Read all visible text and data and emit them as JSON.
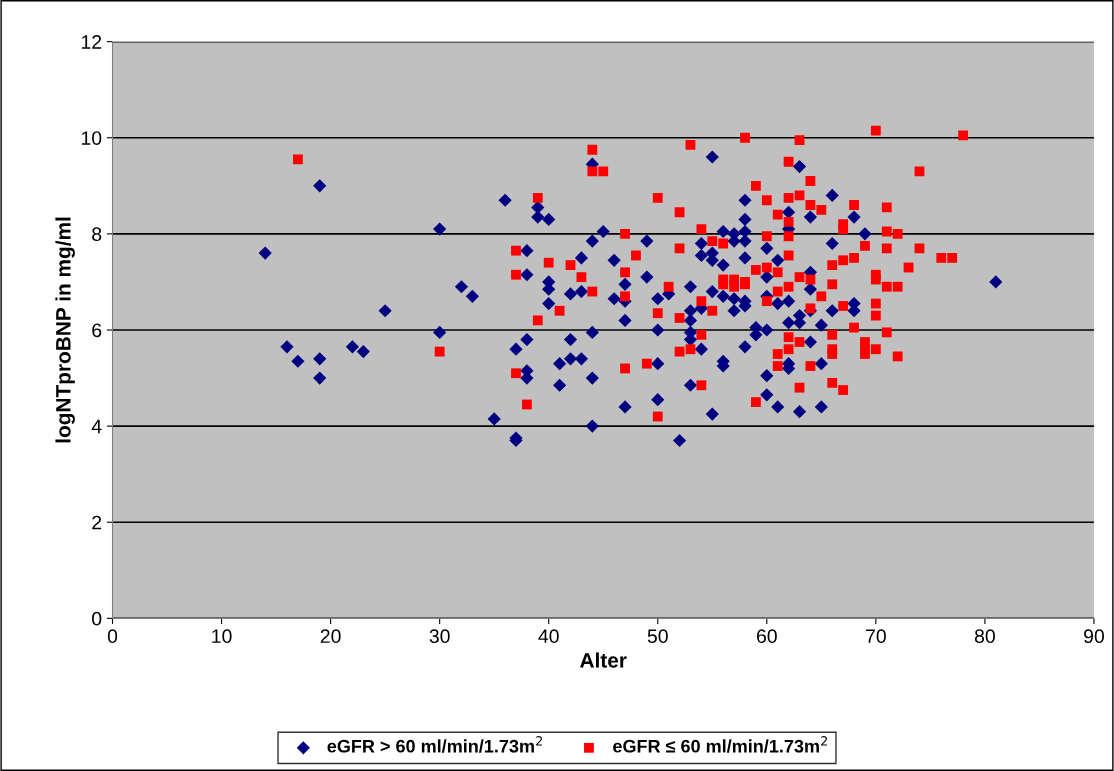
{
  "chart_data": {
    "type": "scatter",
    "xlabel": "Alter",
    "ylabel": "logNTproBNP in mg/ml",
    "xlim": [
      0,
      90
    ],
    "xticks": [
      0,
      10,
      20,
      30,
      40,
      50,
      60,
      70,
      80,
      90
    ],
    "ylim": [
      0,
      12
    ],
    "yticks": [
      0,
      2,
      4,
      6,
      8,
      10,
      12
    ],
    "grid": "y",
    "legend": "bottom",
    "series": [
      {
        "name": "eGFR > 60 ml/min/1.73m$^{2}$",
        "color": "#000080",
        "marker": "diamond",
        "x": [
          14,
          16,
          17,
          19,
          19,
          19,
          22,
          23,
          25,
          30,
          30,
          32,
          33,
          35,
          36,
          37,
          37,
          37,
          38,
          38,
          38,
          38,
          38,
          39,
          39,
          40,
          40,
          40,
          40,
          41,
          41,
          42,
          42,
          42,
          43,
          43,
          43,
          44,
          44,
          44,
          44,
          44,
          45,
          46,
          46,
          47,
          47,
          47,
          47,
          49,
          49,
          50,
          50,
          50,
          50,
          51,
          52,
          53,
          53,
          53,
          53,
          53,
          53,
          54,
          54,
          54,
          54,
          55,
          55,
          55,
          55,
          55,
          56,
          56,
          56,
          56,
          56,
          57,
          57,
          57,
          57,
          58,
          58,
          58,
          58,
          58,
          58,
          58,
          58,
          59,
          59,
          60,
          60,
          60,
          60,
          60,
          60,
          61,
          61,
          61,
          62,
          62,
          62,
          62,
          62,
          62,
          63,
          63,
          63,
          63,
          64,
          64,
          64,
          64,
          64,
          65,
          65,
          65,
          66,
          66,
          66,
          68,
          68,
          68,
          69,
          81
        ],
        "values": [
          7.6,
          5.65,
          5.35,
          9.0,
          5.4,
          5.0,
          5.65,
          5.55,
          6.4,
          8.1,
          5.95,
          6.9,
          6.7,
          4.15,
          8.7,
          3.75,
          3.7,
          5.6,
          7.65,
          7.15,
          5.8,
          5.15,
          5.0,
          8.55,
          8.35,
          8.3,
          7.0,
          6.85,
          6.55,
          4.85,
          5.3,
          6.75,
          5.8,
          5.4,
          7.5,
          6.8,
          5.4,
          9.45,
          7.85,
          5.95,
          5.0,
          4.0,
          8.05,
          7.45,
          6.65,
          6.95,
          6.6,
          6.2,
          4.4,
          7.85,
          7.1,
          6.65,
          6.0,
          5.3,
          4.55,
          6.75,
          3.7,
          6.9,
          6.4,
          6.2,
          5.95,
          5.8,
          4.85,
          7.8,
          7.55,
          6.45,
          5.6,
          9.6,
          7.6,
          7.45,
          6.8,
          4.25,
          8.05,
          7.35,
          6.7,
          5.35,
          5.25,
          8.0,
          7.85,
          6.65,
          6.4,
          8.7,
          8.3,
          8.05,
          7.85,
          7.5,
          6.6,
          6.5,
          5.65,
          6.05,
          5.9,
          7.7,
          7.1,
          6.7,
          6.0,
          5.05,
          4.65,
          7.45,
          6.55,
          4.4,
          8.45,
          8.1,
          6.6,
          6.15,
          5.3,
          5.2,
          9.4,
          6.3,
          6.15,
          4.3,
          8.35,
          7.2,
          6.85,
          6.4,
          5.75,
          6.1,
          5.3,
          4.4,
          8.8,
          7.8,
          6.4,
          8.35,
          6.55,
          6.4,
          8.0,
          7.0
        ]
      },
      {
        "name": "eGFR ≤ 60 ml/min/1.73m$^{2}$",
        "color": "#ff0000",
        "marker": "square",
        "x": [
          17,
          30,
          37,
          37,
          37,
          38,
          39,
          39,
          40,
          41,
          42,
          43,
          44,
          44,
          44,
          45,
          47,
          47,
          47,
          47,
          48,
          49,
          50,
          50,
          50,
          51,
          52,
          52,
          52,
          52,
          53,
          53,
          54,
          54,
          54,
          54,
          55,
          55,
          56,
          56,
          56,
          57,
          57,
          58,
          58,
          58,
          59,
          59,
          59,
          60,
          60,
          60,
          60,
          61,
          61,
          61,
          61,
          61,
          62,
          62,
          62,
          62,
          62,
          62,
          62,
          62,
          63,
          63,
          63,
          63,
          63,
          64,
          64,
          64,
          64,
          64,
          65,
          65,
          66,
          66,
          66,
          66,
          66,
          66,
          67,
          67,
          67,
          67,
          67,
          68,
          68,
          68,
          69,
          69,
          69,
          69,
          70,
          70,
          70,
          70,
          70,
          70,
          71,
          71,
          71,
          71,
          71,
          72,
          72,
          72,
          73,
          74,
          74,
          76,
          77,
          78
        ],
        "values": [
          9.55,
          5.55,
          7.65,
          7.15,
          5.1,
          4.45,
          8.75,
          6.2,
          7.4,
          6.4,
          7.35,
          7.1,
          9.75,
          9.3,
          6.8,
          9.3,
          8.0,
          7.2,
          6.7,
          5.2,
          7.55,
          5.3,
          8.75,
          6.35,
          4.2,
          6.9,
          8.45,
          7.7,
          6.25,
          5.55,
          9.85,
          5.6,
          8.1,
          6.6,
          5.9,
          4.85,
          7.85,
          6.4,
          7.8,
          7.05,
          6.95,
          7.05,
          6.9,
          10.0,
          7.0,
          6.95,
          9.0,
          7.25,
          4.5,
          8.7,
          7.95,
          7.3,
          6.6,
          8.4,
          7.2,
          6.8,
          5.5,
          5.25,
          9.5,
          8.75,
          8.25,
          7.95,
          7.55,
          6.9,
          5.6,
          5.85,
          9.95,
          8.8,
          7.1,
          5.75,
          4.8,
          9.1,
          8.6,
          7.05,
          6.45,
          5.25,
          8.5,
          6.7,
          7.35,
          6.95,
          5.9,
          5.6,
          5.5,
          4.9,
          8.2,
          8.1,
          7.45,
          6.5,
          4.75,
          8.6,
          7.5,
          6.05,
          7.75,
          5.75,
          5.6,
          5.5,
          10.15,
          7.15,
          7.05,
          6.55,
          6.3,
          5.6,
          8.55,
          8.05,
          7.7,
          6.9,
          5.95,
          8.0,
          6.9,
          5.45,
          7.3,
          9.3,
          7.7,
          7.5,
          7.5,
          10.05
        ]
      }
    ]
  }
}
